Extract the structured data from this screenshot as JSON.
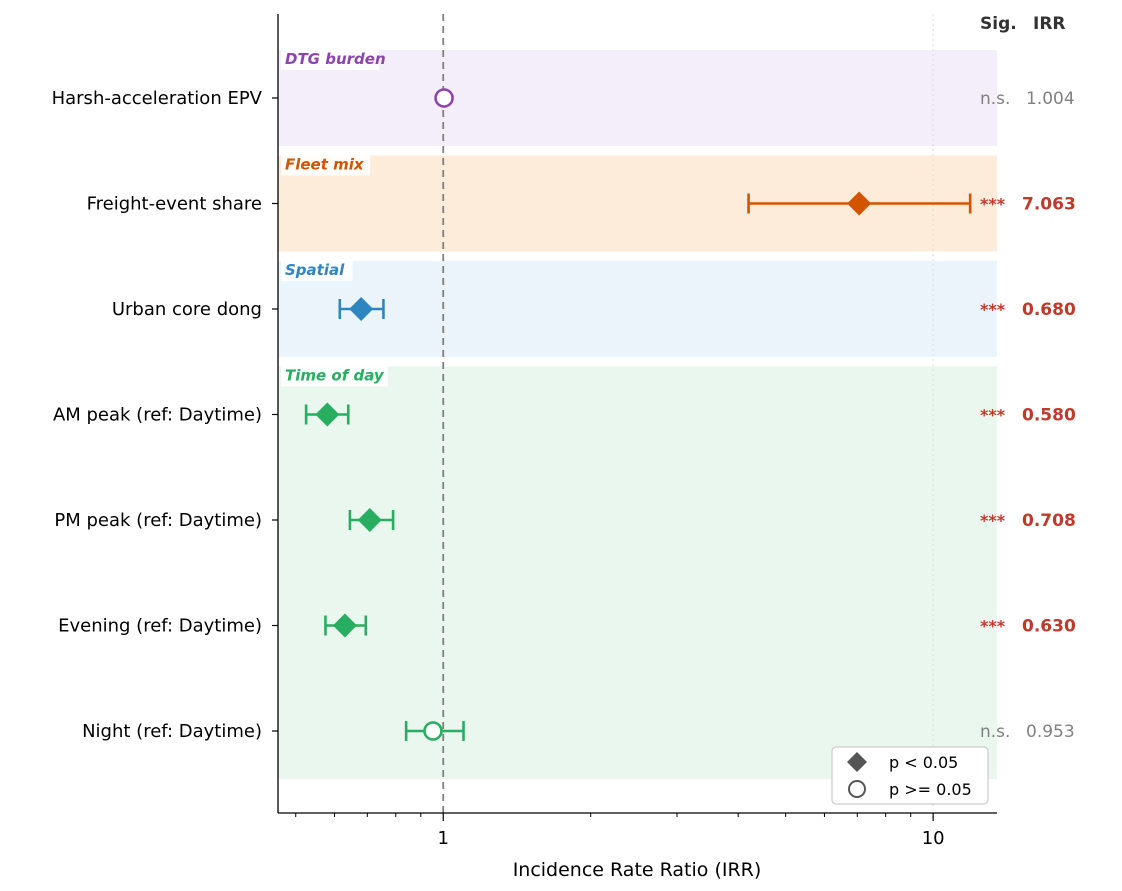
{
  "chart_data": {
    "type": "forest",
    "xlabel": "Incidence Rate Ratio (IRR)",
    "x_scale": "log",
    "xlim": [
      0.46,
      13.5
    ],
    "reference_line": 1,
    "x_major_ticks": [
      {
        "value": 1,
        "label": "1"
      },
      {
        "value": 10,
        "label": "10"
      }
    ],
    "x_minor_ticks": [
      0.5,
      0.6,
      0.7,
      0.8,
      0.9,
      2,
      3,
      4,
      5,
      6,
      7,
      8,
      9
    ],
    "column_headers": {
      "sig": "Sig.",
      "irr": "IRR"
    },
    "groups": [
      {
        "name": "DTG burden",
        "color": "#8e44ad",
        "band": "#f4eefa",
        "rows": [
          0,
          0
        ]
      },
      {
        "name": "Fleet mix",
        "color": "#d35400",
        "band": "#fcecd9",
        "rows": [
          1,
          1
        ]
      },
      {
        "name": "Spatial",
        "color": "#2e86c1",
        "band": "#ebf3fb",
        "rows": [
          2,
          2
        ]
      },
      {
        "name": "Time of day",
        "color": "#27ae60",
        "band": "#eaf7ef",
        "rows": [
          3,
          6
        ]
      }
    ],
    "rows": [
      {
        "label": "Harsh-acceleration EPV",
        "irr": 1.004,
        "ci_low": null,
        "ci_high": null,
        "significant": false,
        "sig": "n.s.",
        "irr_text": "1.004",
        "color": "#8e44ad"
      },
      {
        "label": "Freight-event share",
        "irr": 7.063,
        "ci_low": 4.2,
        "ci_high": 11.9,
        "significant": true,
        "sig": "***",
        "irr_text": "7.063",
        "color": "#d35400"
      },
      {
        "label": "Urban core dong",
        "irr": 0.68,
        "ci_low": 0.615,
        "ci_high": 0.755,
        "significant": true,
        "sig": "***",
        "irr_text": "0.680",
        "color": "#2e86c1"
      },
      {
        "label": "AM peak (ref: Daytime)",
        "irr": 0.58,
        "ci_low": 0.525,
        "ci_high": 0.64,
        "significant": true,
        "sig": "***",
        "irr_text": "0.580",
        "color": "#27ae60"
      },
      {
        "label": "PM peak (ref: Daytime)",
        "irr": 0.708,
        "ci_low": 0.645,
        "ci_high": 0.79,
        "significant": true,
        "sig": "***",
        "irr_text": "0.708",
        "color": "#27ae60"
      },
      {
        "label": "Evening (ref: Daytime)",
        "irr": 0.63,
        "ci_low": 0.575,
        "ci_high": 0.695,
        "significant": true,
        "sig": "***",
        "irr_text": "0.630",
        "color": "#27ae60"
      },
      {
        "label": "Night (ref: Daytime)",
        "irr": 0.953,
        "ci_low": 0.84,
        "ci_high": 1.1,
        "significant": false,
        "sig": "n.s.",
        "irr_text": "0.953",
        "color": "#27ae60"
      }
    ],
    "sig_color": "#c0392b",
    "ns_color": "#808080",
    "legend": {
      "position": "lower-right",
      "entries": [
        {
          "marker": "diamond",
          "label": "p < 0.05"
        },
        {
          "marker": "open-circle",
          "label": "p >= 0.05"
        }
      ]
    }
  }
}
